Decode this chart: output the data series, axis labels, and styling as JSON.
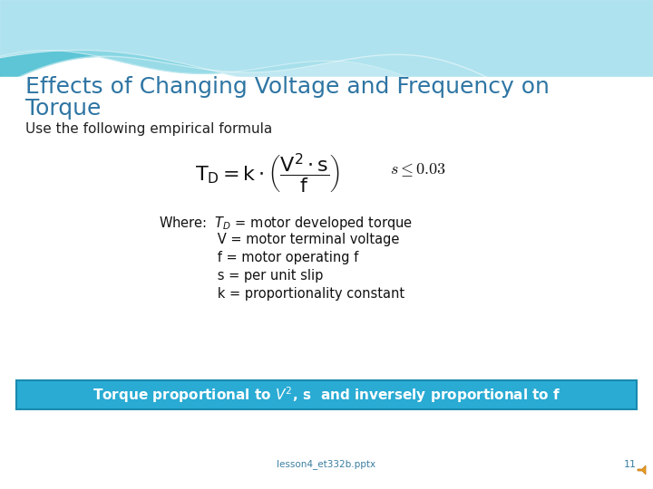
{
  "title_line1": "Effects of Changing Voltage and Frequency on",
  "title_line2": "Torque",
  "title_color": "#2E75A3",
  "subtitle": "Use the following empirical formula",
  "subtitle_color": "#222222",
  "bottom_box_text": "Torque proportional to $V^2$, s  and inversely proportional to f",
  "bottom_box_bg": "#29ABD4",
  "bottom_box_text_color": "#FFFFFF",
  "footer_text": "lesson4_et332b.pptx",
  "footer_page": "11",
  "bg_color": "#FFFFFF",
  "wave_color_outer": "#70CDD8",
  "wave_color_inner": "#A8DDE8",
  "wave_color_lightest": "#C8EDF4"
}
